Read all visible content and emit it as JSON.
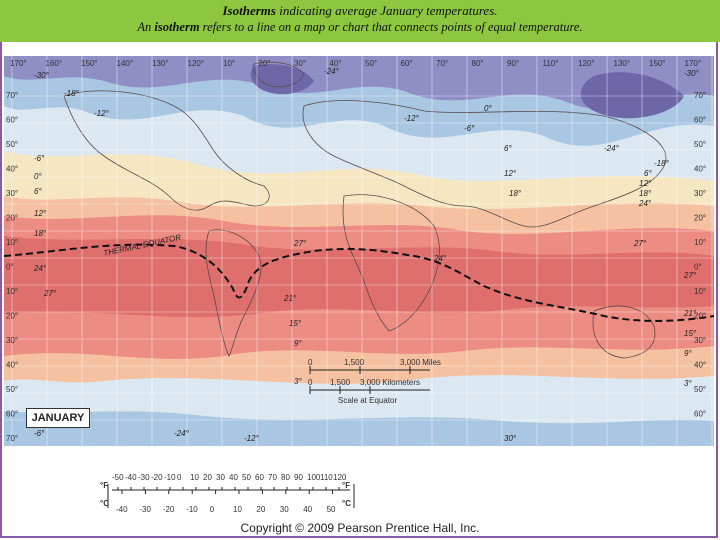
{
  "banner": {
    "line1_term": "Isotherms",
    "line1_rest": " indicating average January temperatures.",
    "line2_pre": "An ",
    "line2_term": "isotherm",
    "line2_rest": " refers to a line on a map or chart that connects points of equal temperature."
  },
  "map": {
    "top_longitudes": [
      "170°",
      "160°",
      "150°",
      "140°",
      "130°",
      "120°",
      "10°",
      "20°",
      "30°",
      "40°",
      "50°",
      "60°",
      "70°",
      "80°",
      "90°",
      "110°",
      "120°",
      "130°",
      "150°",
      "170°"
    ],
    "left_latitudes": [
      "70°",
      "60°",
      "50°",
      "40°",
      "30°",
      "20°",
      "10°",
      "0°",
      "10°",
      "20°",
      "30°",
      "40°",
      "50°",
      "60°",
      "70°"
    ],
    "right_latitudes": [
      "70°",
      "60°",
      "50°",
      "40°",
      "30°",
      "20°",
      "10°",
      "0°",
      "10°",
      "20°",
      "30°",
      "40°",
      "50°",
      "60°"
    ],
    "isotherm_labels": [
      "-30°",
      "-18°",
      "-12°",
      "-6°",
      "0°",
      "6°",
      "12°",
      "18°",
      "24°",
      "27°",
      "-24°",
      "-12°",
      "-6°",
      "0°",
      "6°",
      "12°",
      "18°",
      "24°",
      "27°",
      "21°",
      "15°",
      "9°",
      "3°",
      "-24°",
      "-30°",
      "-18°",
      "27°",
      "21°",
      "15°",
      "9°",
      "3°",
      "30°",
      "-12°",
      "-6°",
      "-24°",
      "27°",
      "24°",
      "18°",
      "12°",
      "6°"
    ],
    "thermal_equator_label": "THERMAL EQUATOR",
    "map_title": "JANUARY",
    "colors": {
      "cold_deep": "#6d67a8",
      "cold": "#8f8fc6",
      "cool": "#a9c6e2",
      "mild": "#dbe8f2",
      "warm_pale": "#f7e6c2",
      "warm": "#f5c1a0",
      "hot": "#ec8c83",
      "hottest": "#dc6a6a"
    }
  },
  "scale": {
    "miles": [
      "0",
      "1,500",
      "3,000 Miles"
    ],
    "kilometers": [
      "0",
      "1,500",
      "3,000 Kilometers"
    ],
    "note": "Scale at Equator"
  },
  "thermometer": {
    "fahrenheit_ticks": [
      "-50",
      "-40",
      "-30",
      "-20",
      "-10",
      "0",
      "10",
      "20",
      "30",
      "40",
      "50",
      "60",
      "70",
      "80",
      "90",
      "100",
      "110",
      "120"
    ],
    "celsius_ticks": [
      "-40",
      "-30",
      "-20",
      "-10",
      "0",
      "10",
      "20",
      "30",
      "40",
      "50"
    ],
    "f_unit": "°F",
    "c_unit": "°C"
  },
  "copyright": "Copyright © 2009 Pearson Prentice Hall, Inc."
}
